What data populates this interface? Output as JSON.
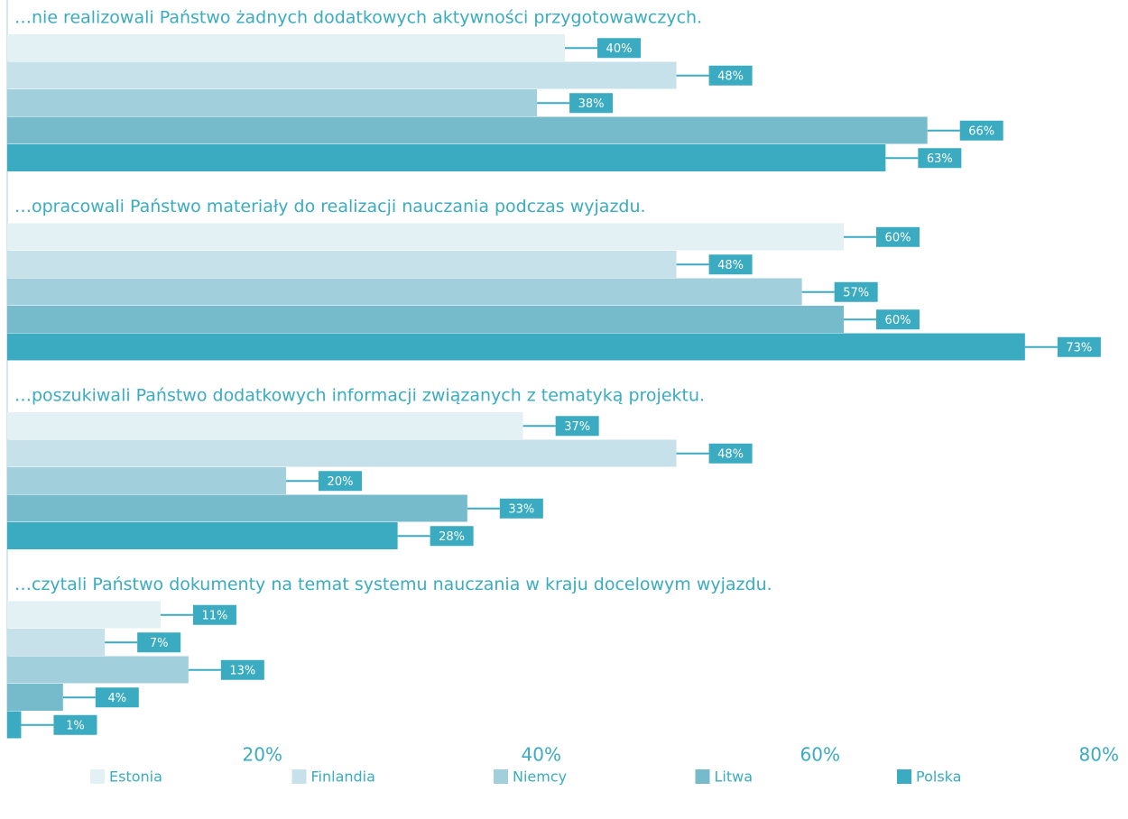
{
  "chart_data": {
    "type": "bar",
    "orientation": "horizontal",
    "categories": [
      "…nie realizowali Państwo żadnych dodatkowych aktywności przygotowawczych.",
      "…opracowali Państwo materiały do realizacji nauczania podczas wyjazdu.",
      "…poszukiwali Państwo dodatkowych informacji związanych z tematyką projektu.",
      "…czytali Państwo dokumenty na temat systemu nauczania w kraju docelowym wyjazdu."
    ],
    "series": [
      {
        "name": "Estonia",
        "color": "#e3f0f4",
        "values": [
          40,
          60,
          37,
          11
        ],
        "value_labels": [
          "40%",
          "60%",
          "37%",
          "11%"
        ]
      },
      {
        "name": "Finlandia",
        "color": "#c6e1e9",
        "values": [
          48,
          48,
          48,
          7
        ],
        "value_labels": [
          "48%",
          "48%",
          "48%",
          "7%"
        ]
      },
      {
        "name": "Niemcy",
        "color": "#a1cfdc",
        "values": [
          38,
          57,
          20,
          13
        ],
        "value_labels": [
          "38%",
          "57%",
          "20%",
          "13%"
        ]
      },
      {
        "name": "Litwa",
        "color": "#76bbcc",
        "values": [
          66,
          60,
          33,
          4
        ],
        "value_labels": [
          "66%",
          "60%",
          "33%",
          "4%"
        ]
      },
      {
        "name": "Polska",
        "color": "#3aabc0",
        "values": [
          63,
          73,
          28,
          1
        ],
        "value_labels": [
          "63%",
          "73%",
          "28%",
          "1%"
        ]
      }
    ],
    "xlim": [
      0,
      80
    ],
    "xticks": [
      {
        "value": 20,
        "label": "20%"
      },
      {
        "value": 40,
        "label": "40%"
      },
      {
        "value": 60,
        "label": "60%"
      },
      {
        "value": 80,
        "label": "80%"
      }
    ],
    "label_color": "#3aabc0"
  }
}
